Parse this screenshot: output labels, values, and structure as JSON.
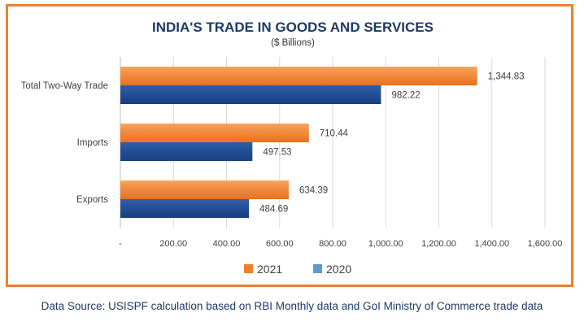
{
  "chart_data": {
    "type": "bar",
    "orientation": "horizontal",
    "title": "INDIA'S TRADE IN GOODS AND SERVICES",
    "subtitle": "($ Billions)",
    "categories": [
      "Total Two-Way Trade",
      "Imports",
      "Exports"
    ],
    "series": [
      {
        "name": "2021",
        "values": [
          1344.83,
          710.44,
          634.39
        ],
        "labels": [
          "1,344.83",
          "710.44",
          "634.39"
        ],
        "color": "#f07f2a"
      },
      {
        "name": "2020",
        "values": [
          982.22,
          497.53,
          484.69
        ],
        "labels": [
          "982.22",
          "497.53",
          "484.69"
        ],
        "color": "#1f4e96"
      }
    ],
    "xlim": [
      0,
      1600
    ],
    "x_ticks": [
      0,
      200,
      400,
      600,
      800,
      1000,
      1200,
      1400,
      1600
    ],
    "x_tick_labels": [
      "-",
      "200.00",
      "400.00",
      "600.00",
      "800.00",
      "1,000.00",
      "1,200.00",
      "1,400.00",
      "1,600.00"
    ],
    "grid": "vertical",
    "legend_position": "bottom",
    "legend_colors": [
      "#f07f2a",
      "#5b9bd5"
    ]
  },
  "source_note": "Data Source: USISPF calculation based on RBI Monthly data and GoI Ministry of Commerce trade data"
}
